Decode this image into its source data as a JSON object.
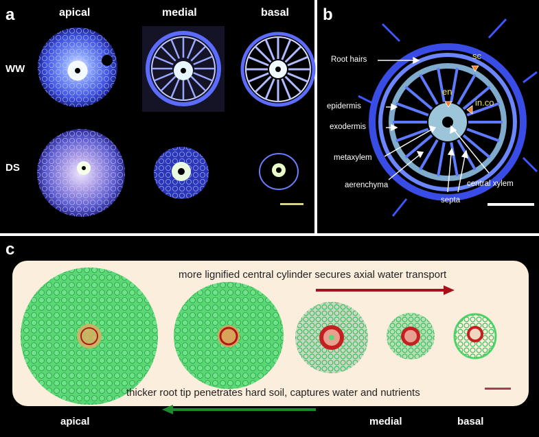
{
  "panel_a": {
    "label": "a",
    "columns": [
      "apical",
      "medial",
      "basal"
    ],
    "rows": [
      "WW",
      "DS"
    ]
  },
  "panel_b": {
    "label": "b",
    "annotations": {
      "root_hairs": "Root hairs",
      "epidermis": "epidermis",
      "exodermis": "exodermis",
      "metaxylem": "metaxylem",
      "aerenchyma": "aerenchyma",
      "septa": "septa",
      "central_xylem": "central xylem",
      "sc": "sc",
      "en": "en",
      "in_co": "in.co"
    }
  },
  "panel_c": {
    "label": "c",
    "top_text": "more lignified central cylinder secures axial water transport",
    "bottom_text": "thicker root tip penetrates hard soil, captures water and nutrients",
    "labels": [
      "apical",
      "medial",
      "basal"
    ]
  },
  "colors": {
    "panel_bg": "#000000",
    "fluor_blue": "#4a5cff",
    "cream": "#fbeedd",
    "lignin_red": "#b01818",
    "cell_green": "#4fd66a",
    "arrow_red": "#a8101a",
    "arrow_green": "#1e8a2e",
    "annot_yellow": "#f0e44a"
  }
}
